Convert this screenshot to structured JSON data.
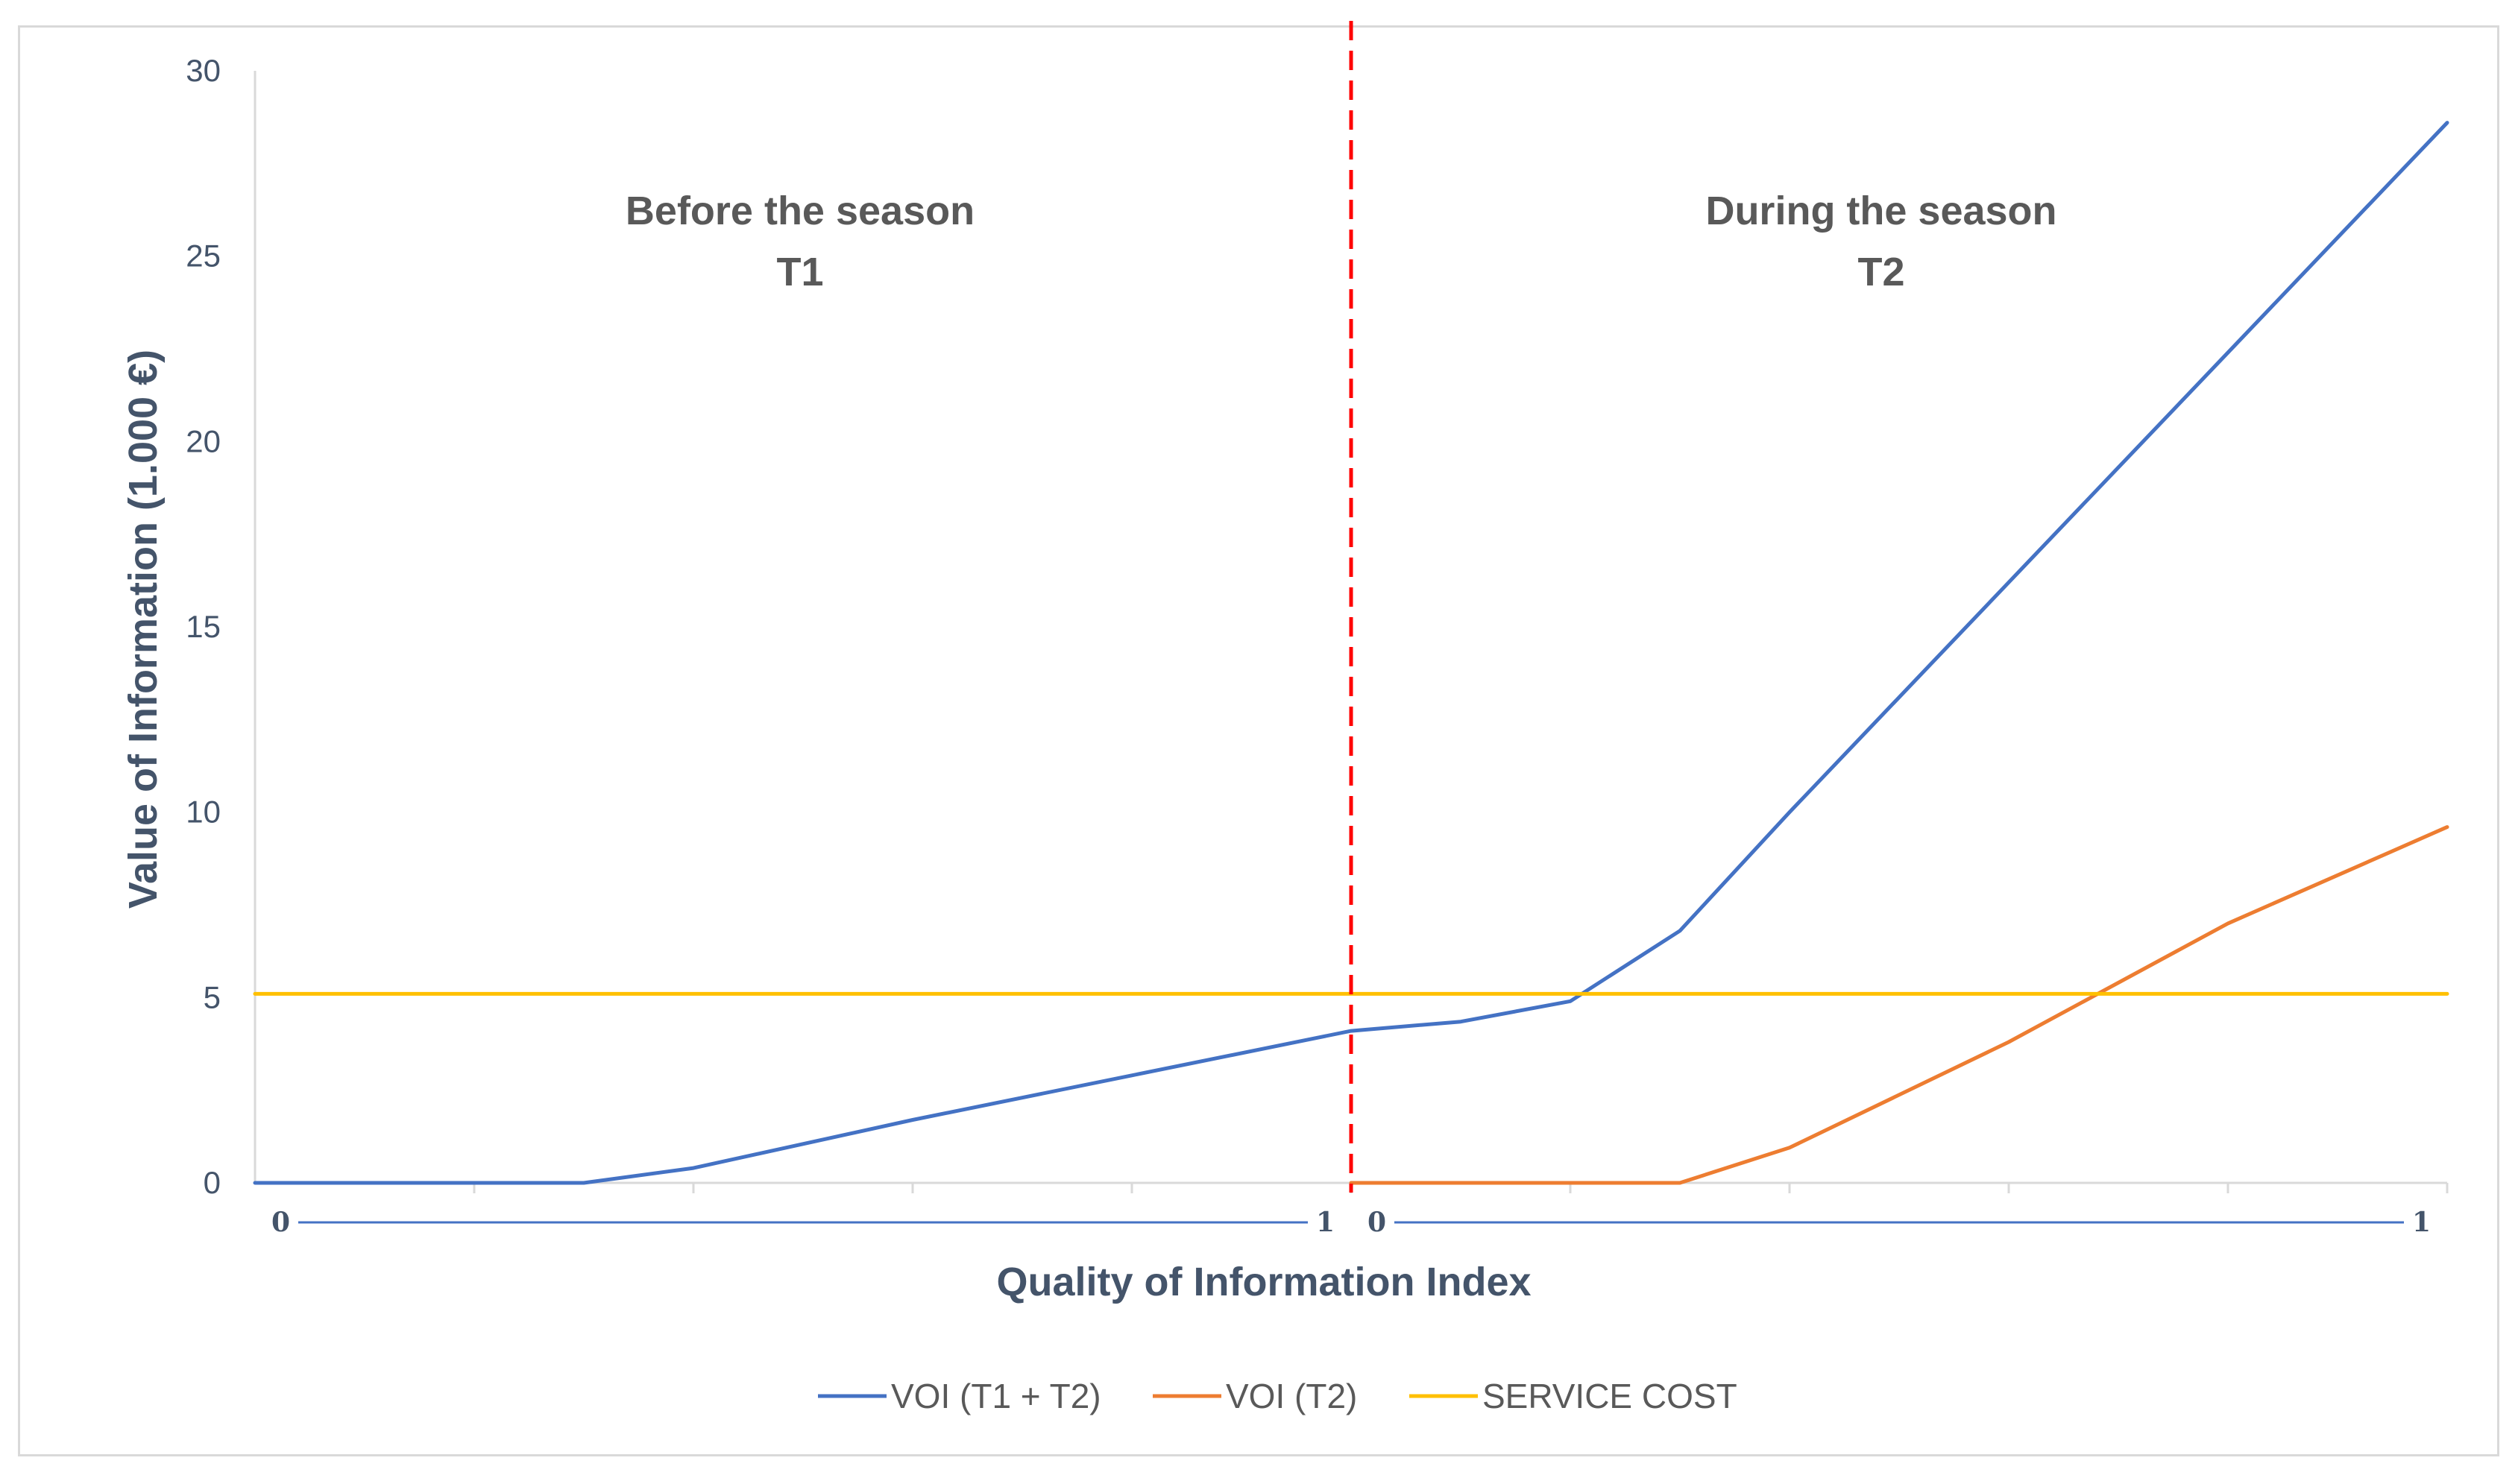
{
  "chart_data": {
    "type": "line",
    "title": "",
    "ylabel": "Value of Information (1.000 €)",
    "xlabel": "Quality of Information Index",
    "ylim": [
      0,
      30
    ],
    "yticks": [
      0,
      5,
      10,
      15,
      20,
      25,
      30
    ],
    "grid": false,
    "legend_position": "bottom",
    "segments": [
      {
        "id": "t1",
        "label_line1": "Before the season",
        "label_line2": "T1",
        "x_start_label": "0",
        "x_end_label": "1",
        "xlim": [
          0,
          1
        ]
      },
      {
        "id": "t2",
        "label_line1": "During the season",
        "label_line2": "T2",
        "x_start_label": "0",
        "x_end_label": "1",
        "xlim": [
          0,
          1
        ]
      }
    ],
    "series": [
      {
        "name": "VOI (T1 + T2)",
        "color": "#4472c4",
        "points": [
          {
            "segment": 0,
            "x": 0.0,
            "y": 0.0
          },
          {
            "segment": 0,
            "x": 0.3,
            "y": 0.0
          },
          {
            "segment": 0,
            "x": 0.4,
            "y": 0.4
          },
          {
            "segment": 0,
            "x": 0.6,
            "y": 1.7
          },
          {
            "segment": 0,
            "x": 0.8,
            "y": 2.9
          },
          {
            "segment": 0,
            "x": 1.0,
            "y": 4.1
          },
          {
            "segment": 1,
            "x": 0.1,
            "y": 4.35
          },
          {
            "segment": 1,
            "x": 0.2,
            "y": 4.9
          },
          {
            "segment": 1,
            "x": 0.3,
            "y": 6.8
          },
          {
            "segment": 1,
            "x": 0.4,
            "y": 10.0
          },
          {
            "segment": 1,
            "x": 0.6,
            "y": 16.2
          },
          {
            "segment": 1,
            "x": 0.8,
            "y": 22.4
          },
          {
            "segment": 1,
            "x": 1.0,
            "y": 28.6
          }
        ]
      },
      {
        "name": "VOI (T2)",
        "color": "#ed7d31",
        "points": [
          {
            "segment": 1,
            "x": 0.0,
            "y": 0.0
          },
          {
            "segment": 1,
            "x": 0.3,
            "y": 0.0
          },
          {
            "segment": 1,
            "x": 0.4,
            "y": 0.95
          },
          {
            "segment": 1,
            "x": 0.6,
            "y": 3.8
          },
          {
            "segment": 1,
            "x": 0.8,
            "y": 7.0
          },
          {
            "segment": 1,
            "x": 1.0,
            "y": 9.6
          }
        ]
      },
      {
        "name": "SERVICE COST",
        "color": "#ffc000",
        "points": [
          {
            "segment": 0,
            "x": 0.0,
            "y": 5.1
          },
          {
            "segment": 1,
            "x": 1.0,
            "y": 5.1
          }
        ]
      }
    ],
    "divider": {
      "color": "#ff0000",
      "style": "dashed"
    }
  }
}
